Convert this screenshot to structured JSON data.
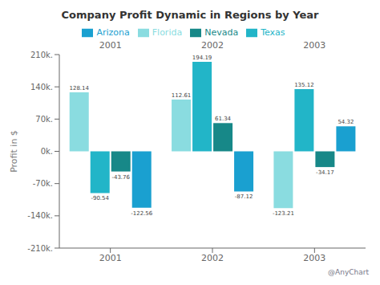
{
  "chart_data": {
    "type": "bar",
    "title": "Company Profit Dynamic in Regions by Year",
    "y_label": "Profit in $",
    "categories": [
      "2001",
      "2002",
      "2003"
    ],
    "series": [
      {
        "name": "Florida",
        "color": "#8adce0",
        "values": [
          128.14,
          112.61,
          -123.21
        ]
      },
      {
        "name": "Texas",
        "color": "#22b5c8",
        "values": [
          -90.54,
          194.19,
          135.12
        ]
      },
      {
        "name": "Nevada",
        "color": "#178888",
        "values": [
          -43.76,
          61.34,
          -34.17
        ]
      },
      {
        "name": "Arizona",
        "color": "#1aa0d0",
        "values": [
          -122.56,
          -87.12,
          54.32
        ]
      }
    ],
    "ylim": [
      -210,
      210
    ],
    "yticks": [
      {
        "value": -210,
        "label": "-210k."
      },
      {
        "value": -140,
        "label": "-140k."
      },
      {
        "value": -70,
        "label": "-70k."
      },
      {
        "value": 0,
        "label": "0k."
      },
      {
        "value": 70,
        "label": "70k."
      },
      {
        "value": 140,
        "label": "140k."
      },
      {
        "value": 210,
        "label": "210k."
      }
    ],
    "grid": false,
    "legend": "top",
    "data_labels": true,
    "annotations": [
      "@AnyChart"
    ]
  }
}
